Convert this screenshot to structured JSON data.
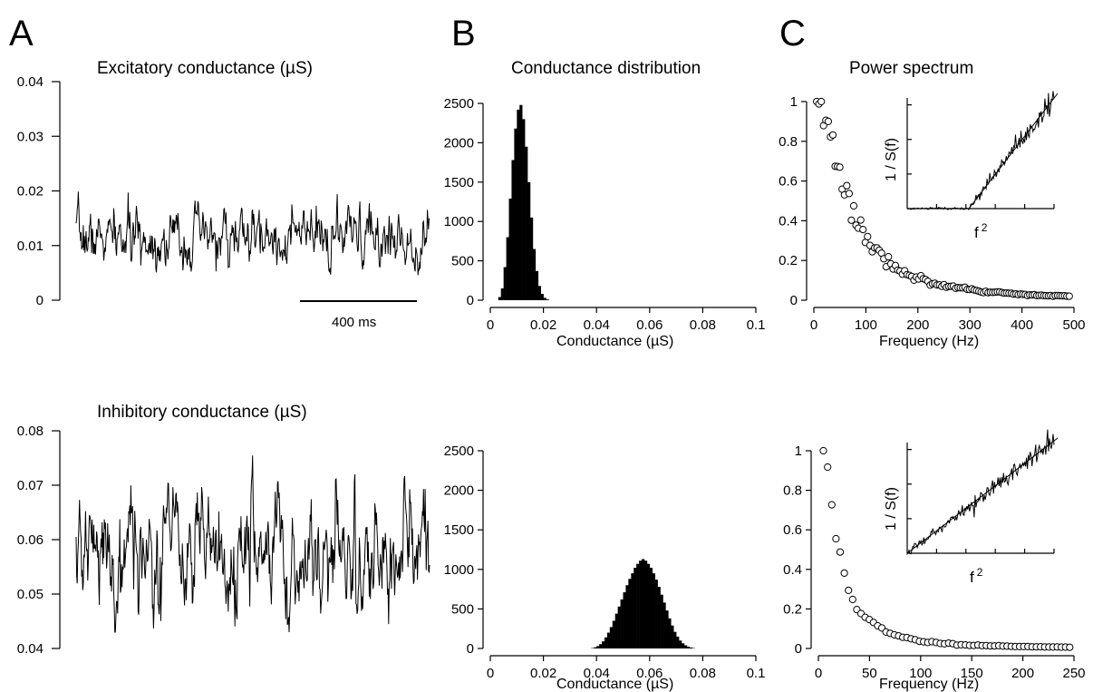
{
  "chart_data": [
    {
      "id": "exc_trace",
      "type": "line",
      "panel": "A",
      "title": "Excitatory conductance (µS)",
      "yticks": [
        0,
        0.01,
        0.02,
        0.03,
        0.04
      ],
      "ylim": [
        0,
        0.04
      ],
      "scalebar_label": "400 ms",
      "signal": {
        "mean": 0.0115,
        "sd": 0.0028,
        "min": 0.0046,
        "max": 0.0228
      },
      "xlabel": "",
      "ylabel": ""
    },
    {
      "id": "inh_trace",
      "type": "line",
      "title": "Inhibitory conductance (µS)",
      "yticks": [
        0.04,
        0.05,
        0.06,
        0.07,
        0.08
      ],
      "ylim": [
        0.04,
        0.08
      ],
      "signal": {
        "mean": 0.0575,
        "sd": 0.0058,
        "min": 0.043,
        "max": 0.076
      },
      "xlabel": "",
      "ylabel": ""
    },
    {
      "id": "exc_hist",
      "type": "bar",
      "panel": "B",
      "title": "Conductance distribution",
      "xlabel": "Conductance (µS)",
      "ylabel": "",
      "xticks": [
        "0",
        "0.02",
        "0.04",
        "0.06",
        "0.08",
        "0.1"
      ],
      "yticks": [
        0,
        500,
        1000,
        1500,
        2000,
        2500
      ],
      "xlim": [
        0,
        0.1
      ],
      "ylim": [
        0,
        2500
      ],
      "bin_centers": [
        0.0035,
        0.0045,
        0.0055,
        0.0065,
        0.0075,
        0.0085,
        0.0095,
        0.0105,
        0.0115,
        0.0125,
        0.0135,
        0.0145,
        0.0155,
        0.0165,
        0.0175,
        0.0185,
        0.0195,
        0.0205,
        0.0215
      ],
      "counts": [
        40,
        150,
        420,
        800,
        1290,
        1780,
        2180,
        2420,
        2480,
        2300,
        1950,
        1500,
        1050,
        650,
        370,
        180,
        80,
        30,
        10
      ]
    },
    {
      "id": "inh_hist",
      "type": "bar",
      "title": "",
      "xlabel": "Conductance (µS)",
      "ylabel": "",
      "xticks": [
        "0",
        "0.02",
        "0.04",
        "0.06",
        "0.08",
        "0.1"
      ],
      "yticks": [
        0,
        500,
        1000,
        1500,
        2000,
        2500
      ],
      "xlim": [
        0,
        0.1
      ],
      "ylim": [
        0,
        2500
      ],
      "bin_centers": [
        0.0385,
        0.0395,
        0.0405,
        0.0415,
        0.0425,
        0.0435,
        0.0445,
        0.0455,
        0.0465,
        0.0475,
        0.0485,
        0.0495,
        0.0505,
        0.0515,
        0.0525,
        0.0535,
        0.0545,
        0.0555,
        0.0565,
        0.0575,
        0.0585,
        0.0595,
        0.0605,
        0.0615,
        0.0625,
        0.0635,
        0.0645,
        0.0655,
        0.0665,
        0.0675,
        0.0685,
        0.0695,
        0.0705,
        0.0715,
        0.0725,
        0.0735,
        0.0745,
        0.0755,
        0.0765
      ],
      "counts": [
        5,
        15,
        30,
        55,
        90,
        140,
        200,
        270,
        350,
        440,
        530,
        620,
        710,
        800,
        880,
        950,
        1020,
        1070,
        1110,
        1130,
        1110,
        1070,
        1020,
        950,
        870,
        780,
        680,
        580,
        480,
        380,
        290,
        210,
        150,
        100,
        65,
        40,
        22,
        12,
        5
      ]
    },
    {
      "id": "exc_psd",
      "type": "scatter",
      "panel": "C",
      "title": "Power spectrum",
      "xlabel": "Frequency (Hz)",
      "ylabel": "",
      "xticks": [
        0,
        100,
        200,
        300,
        400,
        500
      ],
      "yticks": [
        "0",
        "0.2",
        "0.4",
        "0.6",
        "0.8",
        "1"
      ],
      "xlim": [
        0,
        500
      ],
      "ylim": [
        0,
        1
      ],
      "cutoff_hz": 70,
      "x": [],
      "y": [],
      "inset": {
        "xlabel": "f 2",
        "ylabel": "1 / S(f)"
      }
    },
    {
      "id": "inh_psd",
      "type": "scatter",
      "title": "",
      "xlabel": "Frequency (Hz)",
      "ylabel": "",
      "xticks": [
        0,
        50,
        100,
        150,
        200,
        250
      ],
      "yticks": [
        "0",
        "0.2",
        "0.4",
        "0.6",
        "0.8",
        "1"
      ],
      "xlim": [
        0,
        250
      ],
      "ylim": [
        0,
        1
      ],
      "cutoff_hz": 20,
      "x": [],
      "y": [],
      "inset": {
        "xlabel": "f 2",
        "ylabel": "1 / S(f)"
      }
    }
  ],
  "labels": {
    "panel_a": "A",
    "panel_b": "B",
    "panel_c": "C",
    "exc_title": "Excitatory conductance (µS)",
    "inh_title": "Inhibitory conductance (µS)",
    "dist_title": "Conductance distribution",
    "psd_title": "Power spectrum",
    "scalebar": "400 ms",
    "cond_xlabel": "Conductance (µS)",
    "freq_xlabel": "Frequency (Hz)",
    "inset_xlabel": "f",
    "inset_xlabel_sup": "2",
    "inset_ylabel": "1 / S(f)"
  }
}
